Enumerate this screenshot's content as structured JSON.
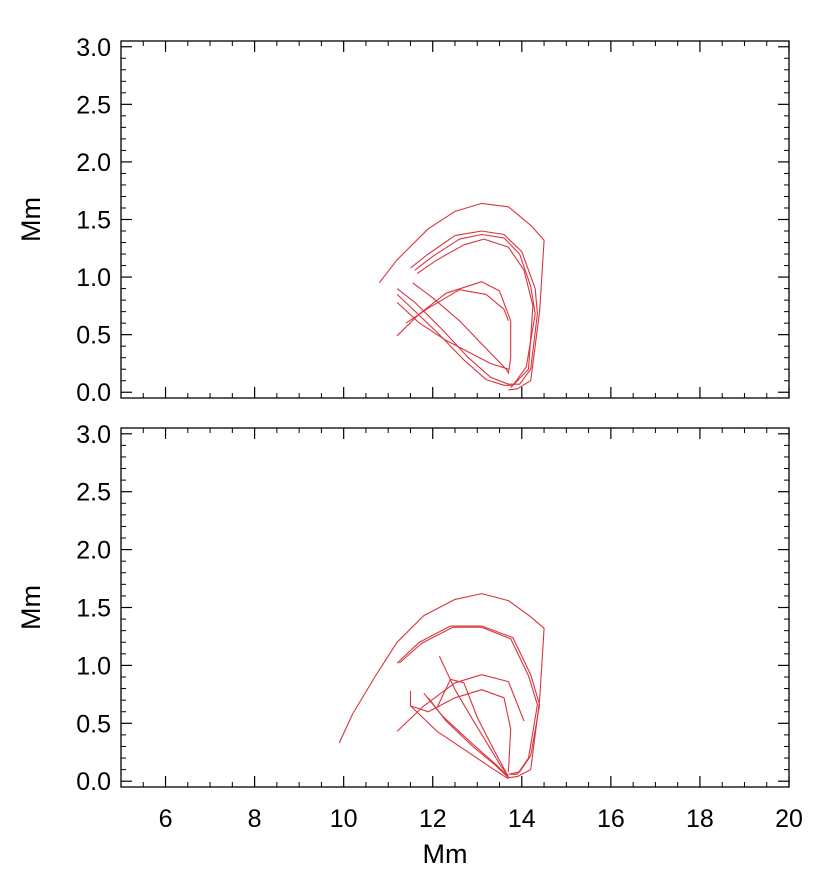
{
  "chart_data": [
    {
      "type": "line",
      "panel": "top",
      "xlabel": "",
      "ylabel": "Mm",
      "xlim": [
        5,
        20
      ],
      "ylim": [
        -0.05,
        3.05
      ],
      "xticks": [
        6,
        8,
        10,
        12,
        14,
        16,
        18,
        20
      ],
      "xtick_labels_shown": false,
      "yticks": [
        0.0,
        0.5,
        1.0,
        1.5,
        2.0,
        2.5,
        3.0
      ],
      "ytick_labels": [
        "0.0",
        "0.5",
        "1.0",
        "1.5",
        "2.0",
        "2.5",
        "3.0"
      ],
      "grid": false,
      "line_color": "#d9343f",
      "series": [
        {
          "x": [
            10.8,
            11.2,
            11.9,
            12.5,
            13.1,
            13.7,
            14.2,
            14.5,
            14.4,
            14.2,
            13.9,
            13.7
          ],
          "y": [
            0.95,
            1.15,
            1.42,
            1.57,
            1.64,
            1.61,
            1.45,
            1.32,
            0.7,
            0.1,
            0.03,
            0.02
          ]
        },
        {
          "x": [
            11.5,
            11.9,
            12.5,
            13.1,
            13.6,
            14.0,
            14.3,
            14.35,
            14.2,
            13.95,
            13.7,
            13.3,
            12.8,
            12.2,
            11.6,
            11.2
          ],
          "y": [
            1.08,
            1.2,
            1.36,
            1.4,
            1.37,
            1.22,
            0.9,
            0.68,
            0.2,
            0.07,
            0.07,
            0.13,
            0.3,
            0.55,
            0.78,
            0.9
          ]
        },
        {
          "x": [
            11.6,
            12.0,
            12.6,
            13.1,
            13.6,
            13.95,
            14.2,
            14.3,
            14.1,
            13.8,
            13.6,
            13.2,
            12.7,
            12.1,
            11.5,
            11.2
          ],
          "y": [
            1.06,
            1.18,
            1.33,
            1.37,
            1.34,
            1.2,
            0.92,
            0.68,
            0.22,
            0.06,
            0.06,
            0.11,
            0.28,
            0.52,
            0.74,
            0.85
          ]
        },
        {
          "x": [
            11.65,
            12.1,
            12.7,
            13.15,
            13.7,
            14.05,
            14.25,
            14.15,
            13.75
          ],
          "y": [
            1.03,
            1.15,
            1.28,
            1.33,
            1.26,
            1.06,
            0.75,
            0.2,
            0.04
          ]
        },
        {
          "x": [
            11.2,
            11.7,
            12.3,
            12.9,
            13.3,
            13.7
          ],
          "y": [
            0.78,
            0.6,
            0.45,
            0.33,
            0.25,
            0.2
          ]
        },
        {
          "x": [
            11.55,
            12.0,
            12.6,
            13.1,
            13.4,
            13.65,
            13.7
          ],
          "y": [
            0.95,
            0.82,
            0.62,
            0.42,
            0.3,
            0.2,
            0.17
          ]
        },
        {
          "x": [
            11.2,
            11.7,
            12.3,
            13.1,
            13.5,
            13.75,
            13.75,
            13.7
          ],
          "y": [
            0.49,
            0.68,
            0.86,
            0.96,
            0.88,
            0.62,
            0.3,
            0.16
          ]
        },
        {
          "x": [
            11.4,
            11.9,
            12.6,
            13.2,
            13.6,
            13.7
          ],
          "y": [
            0.6,
            0.73,
            0.89,
            0.85,
            0.72,
            0.62
          ]
        }
      ]
    },
    {
      "type": "line",
      "panel": "bottom",
      "xlabel": "Mm",
      "ylabel": "Mm",
      "xlim": [
        5,
        20
      ],
      "ylim": [
        -0.05,
        3.05
      ],
      "xticks": [
        6,
        8,
        10,
        12,
        14,
        16,
        18,
        20
      ],
      "xtick_labels": [
        "6",
        "8",
        "10",
        "12",
        "14",
        "16",
        "18",
        "20"
      ],
      "yticks": [
        0.0,
        0.5,
        1.0,
        1.5,
        2.0,
        2.5,
        3.0
      ],
      "ytick_labels": [
        "0.0",
        "0.5",
        "1.0",
        "1.5",
        "2.0",
        "2.5",
        "3.0"
      ],
      "grid": false,
      "line_color": "#d9343f",
      "series": [
        {
          "x": [
            9.9,
            10.2,
            10.7,
            11.2,
            11.8,
            12.5,
            13.1,
            13.7,
            14.2,
            14.5,
            14.4,
            14.2,
            13.9,
            13.7
          ],
          "y": [
            0.33,
            0.58,
            0.9,
            1.2,
            1.43,
            1.57,
            1.62,
            1.56,
            1.42,
            1.32,
            0.7,
            0.1,
            0.04,
            0.03
          ]
        },
        {
          "x": [
            11.2,
            11.7,
            12.4,
            13.1,
            13.8,
            14.2,
            14.4,
            14.2,
            13.95,
            13.7
          ],
          "y": [
            1.02,
            1.2,
            1.34,
            1.34,
            1.24,
            0.92,
            0.66,
            0.22,
            0.08,
            0.06
          ]
        },
        {
          "x": [
            11.25,
            11.75,
            12.45,
            13.1,
            13.75,
            14.15,
            14.35,
            14.15,
            13.9,
            13.75
          ],
          "y": [
            1.02,
            1.19,
            1.33,
            1.33,
            1.23,
            0.91,
            0.66,
            0.2,
            0.06,
            0.06
          ]
        },
        {
          "x": [
            11.2,
            11.8,
            12.5,
            13.1,
            13.7,
            14.05
          ],
          "y": [
            0.43,
            0.65,
            0.85,
            0.92,
            0.86,
            0.52
          ]
        },
        {
          "x": [
            11.5,
            12.1,
            12.8,
            13.3,
            13.7
          ],
          "y": [
            0.65,
            0.43,
            0.25,
            0.12,
            0.02
          ]
        },
        {
          "x": [
            11.8,
            12.2,
            12.9,
            13.4,
            13.7
          ],
          "y": [
            0.76,
            0.57,
            0.32,
            0.15,
            0.04
          ]
        },
        {
          "x": [
            11.9,
            12.3,
            12.9,
            13.4,
            13.7
          ],
          "y": [
            0.72,
            0.52,
            0.3,
            0.14,
            0.03
          ]
        },
        {
          "x": [
            12.15,
            12.5,
            12.9,
            13.2,
            13.5,
            13.7
          ],
          "y": [
            1.08,
            0.79,
            0.53,
            0.34,
            0.15,
            0.04
          ]
        },
        {
          "x": [
            11.5,
            11.5,
            11.9,
            12.5,
            13.1,
            13.6,
            13.75,
            13.7
          ],
          "y": [
            0.78,
            0.65,
            0.6,
            0.72,
            0.79,
            0.72,
            0.45,
            0.08
          ]
        },
        {
          "x": [
            12.1,
            12.4,
            12.7,
            13.0,
            13.4,
            13.7
          ],
          "y": [
            0.64,
            0.88,
            0.85,
            0.55,
            0.25,
            0.04
          ]
        }
      ]
    }
  ]
}
